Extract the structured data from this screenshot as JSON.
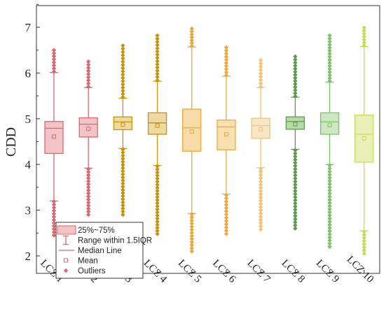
{
  "chart_data": {
    "type": "box",
    "ylabel": "CDD",
    "xlabel": "",
    "ylim": [
      2,
      7.1
    ],
    "yticks": [
      2,
      3,
      4,
      5,
      6,
      7
    ],
    "categories": [
      "LCZ 1",
      "LCZ 2",
      "LCZ 3",
      "LCZ 4",
      "LCZ 5",
      "LCZ 6",
      "LCZ 7",
      "LCZ 8",
      "LCZ 9",
      "LCZ 10"
    ],
    "boxes": [
      {
        "category": "LCZ 1",
        "q1": 4.24,
        "median": 4.79,
        "q3": 4.94,
        "mean": 4.61,
        "whisker_low": 3.2,
        "whisker_high": 6.01,
        "outlier_low": [
          2.45,
          3.19
        ],
        "outlier_high": [
          6.03,
          6.5
        ],
        "color": "#d9686f",
        "fill": "#f2c4c6"
      },
      {
        "category": "LCZ 2",
        "q1": 4.6,
        "median": 4.88,
        "q3": 5.02,
        "mean": 4.78,
        "whisker_low": 3.92,
        "whisker_high": 5.68,
        "outlier_low": [
          2.9,
          3.9
        ],
        "outlier_high": [
          5.7,
          6.25
        ],
        "color": "#d9686f",
        "fill": "#f2c4c6"
      },
      {
        "category": "LCZ 3",
        "q1": 4.76,
        "median": 4.93,
        "q3": 5.04,
        "mean": 4.87,
        "whisker_low": 4.35,
        "whisker_high": 5.45,
        "outlier_low": [
          2.9,
          4.33
        ],
        "outlier_high": [
          5.47,
          6.6
        ],
        "color": "#c8940e",
        "fill": "#f0d9a1"
      },
      {
        "category": "LCZ 4",
        "q1": 4.66,
        "median": 4.91,
        "q3": 5.13,
        "mean": 4.85,
        "whisker_low": 3.98,
        "whisker_high": 5.82,
        "outlier_low": [
          2.48,
          3.96
        ],
        "outlier_high": [
          5.84,
          6.82
        ],
        "color": "#c8940e",
        "fill": "#f0d9a1"
      },
      {
        "category": "LCZ 5",
        "q1": 4.29,
        "median": 4.8,
        "q3": 5.21,
        "mean": 4.72,
        "whisker_low": 2.93,
        "whisker_high": 6.57,
        "outlier_low": [
          2.1,
          2.91
        ],
        "outlier_high": [
          6.59,
          6.97
        ],
        "color": "#e8a83a",
        "fill": "#f7dcaa"
      },
      {
        "category": "LCZ 6",
        "q1": 4.32,
        "median": 4.82,
        "q3": 4.97,
        "mean": 4.66,
        "whisker_low": 3.35,
        "whisker_high": 5.93,
        "outlier_low": [
          2.48,
          3.33
        ],
        "outlier_high": [
          5.95,
          6.56
        ],
        "color": "#edaa42",
        "fill": "#f8e0b0"
      },
      {
        "category": "LCZ 7",
        "q1": 4.57,
        "median": 4.85,
        "q3": 5.01,
        "mean": 4.77,
        "whisker_low": 3.93,
        "whisker_high": 5.68,
        "outlier_low": [
          2.58,
          3.91
        ],
        "outlier_high": [
          5.7,
          6.28
        ],
        "color": "#f2c476",
        "fill": "#f9e6c4"
      },
      {
        "category": "LCZ 8",
        "q1": 4.77,
        "median": 4.94,
        "q3": 5.04,
        "mean": 4.88,
        "whisker_low": 4.33,
        "whisker_high": 5.47,
        "outlier_low": [
          2.6,
          4.31
        ],
        "outlier_high": [
          5.49,
          6.36
        ],
        "color": "#5e9a4e",
        "fill": "#b8d9a8"
      },
      {
        "category": "LCZ 9",
        "q1": 4.66,
        "median": 4.93,
        "q3": 5.13,
        "mean": 4.86,
        "whisker_low": 4.0,
        "whisker_high": 5.8,
        "outlier_low": [
          2.2,
          3.98
        ],
        "outlier_high": [
          5.82,
          6.82
        ],
        "color": "#7fc26a",
        "fill": "#cde8c0"
      },
      {
        "category": "LCZ 10",
        "q1": 4.05,
        "median": 4.66,
        "q3": 5.08,
        "mean": 4.57,
        "whisker_low": 2.55,
        "whisker_high": 6.58,
        "outlier_low": [
          2.05,
          2.53
        ],
        "outlier_high": [
          6.6,
          6.99
        ],
        "color": "#c9da5a",
        "fill": "#e8f0b8"
      }
    ],
    "legend": {
      "placement": "bottom-left",
      "items": [
        {
          "kind": "box",
          "label": "25%~75%"
        },
        {
          "kind": "whisker",
          "label": "Range within 1.5IQR"
        },
        {
          "kind": "median",
          "label": "Median Line"
        },
        {
          "kind": "mean",
          "label": "Mean"
        },
        {
          "kind": "outlier",
          "label": "Outliers"
        }
      ],
      "color": "#d9686f",
      "fill": "#f2c4c6"
    },
    "grid": false
  }
}
